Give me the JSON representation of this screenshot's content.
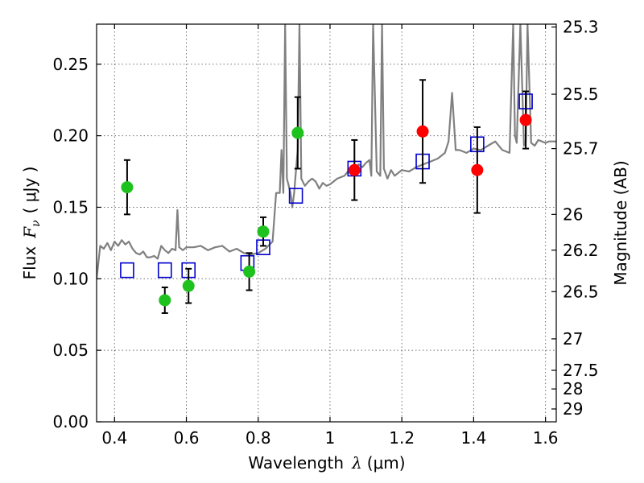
{
  "chart_data": {
    "type": "scatter",
    "xlabel_main": "Wavelength",
    "xlabel_symbol": "λ",
    "xlabel_unit": "(μm)",
    "ylabel_main": "Flux",
    "ylabel_symbol": "F",
    "ylabel_subscript": "ν",
    "ylabel_unit": "( μJy )",
    "y2label": "Magnitude (AB)",
    "xlim": [
      0.35,
      1.63
    ],
    "ylim": [
      0.0,
      0.278
    ],
    "xticks": [
      0.4,
      0.6,
      0.8,
      1.0,
      1.2,
      1.4,
      1.6
    ],
    "xtick_labels": [
      "0.4",
      "0.6",
      "0.8",
      "1",
      "1.2",
      "1.4",
      "1.6"
    ],
    "yticks": [
      0.0,
      0.05,
      0.1,
      0.15,
      0.2,
      0.25
    ],
    "ytick_labels": [
      "0.00",
      "0.05",
      "0.10",
      "0.15",
      "0.20",
      "0.25"
    ],
    "y2ticks": [
      {
        "label": "25.3",
        "flux": 0.276
      },
      {
        "label": "25.5",
        "flux": 0.229
      },
      {
        "label": "25.7",
        "flux": 0.191
      },
      {
        "label": "26",
        "flux": 0.145
      },
      {
        "label": "26.2",
        "flux": 0.12
      },
      {
        "label": "26.5",
        "flux": 0.091
      },
      {
        "label": "27",
        "flux": 0.058
      },
      {
        "label": "27.5",
        "flux": 0.036
      },
      {
        "label": "28",
        "flux": 0.023
      },
      {
        "label": "29",
        "flux": 0.009
      }
    ],
    "grid": true,
    "colors": {
      "green": "#1ec21e",
      "red": "#ff0000",
      "model": "#808080",
      "square": "#0000cc"
    },
    "series": [
      {
        "name": "observed-green",
        "color": "green",
        "points": [
          {
            "x": 0.435,
            "y": 0.164,
            "err": 0.019
          },
          {
            "x": 0.54,
            "y": 0.085,
            "err": 0.009
          },
          {
            "x": 0.606,
            "y": 0.095,
            "err": 0.012
          },
          {
            "x": 0.775,
            "y": 0.105,
            "err": 0.013
          },
          {
            "x": 0.814,
            "y": 0.133,
            "err": 0.01
          },
          {
            "x": 0.91,
            "y": 0.202,
            "err": 0.025
          }
        ]
      },
      {
        "name": "observed-red",
        "color": "red",
        "points": [
          {
            "x": 1.068,
            "y": 0.176,
            "err": 0.021
          },
          {
            "x": 1.258,
            "y": 0.203,
            "err": 0.036
          },
          {
            "x": 1.41,
            "y": 0.176,
            "err": 0.03
          },
          {
            "x": 1.545,
            "y": 0.211,
            "err": 0.02
          }
        ]
      },
      {
        "name": "model-photometry",
        "color": "square",
        "points": [
          {
            "x": 0.435,
            "y": 0.106
          },
          {
            "x": 0.54,
            "y": 0.106
          },
          {
            "x": 0.606,
            "y": 0.106
          },
          {
            "x": 0.77,
            "y": 0.111
          },
          {
            "x": 0.814,
            "y": 0.122
          },
          {
            "x": 0.905,
            "y": 0.158
          },
          {
            "x": 1.068,
            "y": 0.177
          },
          {
            "x": 1.258,
            "y": 0.182
          },
          {
            "x": 1.41,
            "y": 0.194
          },
          {
            "x": 1.545,
            "y": 0.224
          }
        ]
      }
    ],
    "model_spectrum": {
      "x": [
        0.35,
        0.36,
        0.37,
        0.38,
        0.39,
        0.4,
        0.41,
        0.42,
        0.43,
        0.44,
        0.45,
        0.46,
        0.47,
        0.48,
        0.49,
        0.5,
        0.51,
        0.52,
        0.53,
        0.54,
        0.55,
        0.56,
        0.57,
        0.575,
        0.58,
        0.59,
        0.6,
        0.62,
        0.64,
        0.66,
        0.68,
        0.7,
        0.72,
        0.74,
        0.76,
        0.78,
        0.8,
        0.82,
        0.84,
        0.85,
        0.86,
        0.865,
        0.87,
        0.875,
        0.88,
        0.885,
        0.89,
        0.895,
        0.9,
        0.905,
        0.91,
        0.915,
        0.92,
        0.93,
        0.94,
        0.95,
        0.96,
        0.97,
        0.98,
        0.99,
        1.0,
        1.02,
        1.04,
        1.05,
        1.06,
        1.07,
        1.08,
        1.09,
        1.1,
        1.11,
        1.115,
        1.12,
        1.13,
        1.14,
        1.145,
        1.15,
        1.16,
        1.17,
        1.18,
        1.19,
        1.2,
        1.22,
        1.24,
        1.26,
        1.28,
        1.3,
        1.32,
        1.33,
        1.34,
        1.35,
        1.36,
        1.38,
        1.4,
        1.42,
        1.44,
        1.46,
        1.48,
        1.5,
        1.51,
        1.515,
        1.52,
        1.53,
        1.54,
        1.545,
        1.55,
        1.56,
        1.57,
        1.58,
        1.59,
        1.6,
        1.61,
        1.62,
        1.63
      ],
      "y": [
        0.1,
        0.123,
        0.121,
        0.125,
        0.12,
        0.126,
        0.123,
        0.127,
        0.124,
        0.126,
        0.121,
        0.118,
        0.117,
        0.119,
        0.115,
        0.115,
        0.116,
        0.114,
        0.123,
        0.12,
        0.118,
        0.121,
        0.12,
        0.148,
        0.122,
        0.12,
        0.122,
        0.122,
        0.123,
        0.12,
        0.122,
        0.123,
        0.119,
        0.121,
        0.118,
        0.117,
        0.118,
        0.121,
        0.126,
        0.16,
        0.16,
        0.19,
        0.16,
        0.278,
        0.17,
        0.165,
        0.16,
        0.15,
        0.16,
        0.175,
        0.19,
        0.278,
        0.17,
        0.165,
        0.168,
        0.17,
        0.168,
        0.163,
        0.167,
        0.165,
        0.166,
        0.17,
        0.172,
        0.175,
        0.173,
        0.178,
        0.18,
        0.178,
        0.181,
        0.183,
        0.172,
        0.278,
        0.175,
        0.172,
        0.278,
        0.177,
        0.17,
        0.176,
        0.172,
        0.174,
        0.176,
        0.175,
        0.178,
        0.18,
        0.182,
        0.184,
        0.188,
        0.196,
        0.23,
        0.19,
        0.19,
        0.188,
        0.191,
        0.19,
        0.193,
        0.196,
        0.19,
        0.188,
        0.278,
        0.2,
        0.195,
        0.278,
        0.193,
        0.196,
        0.278,
        0.195,
        0.193,
        0.197,
        0.196,
        0.195,
        0.196,
        0.196,
        0.196
      ]
    }
  }
}
